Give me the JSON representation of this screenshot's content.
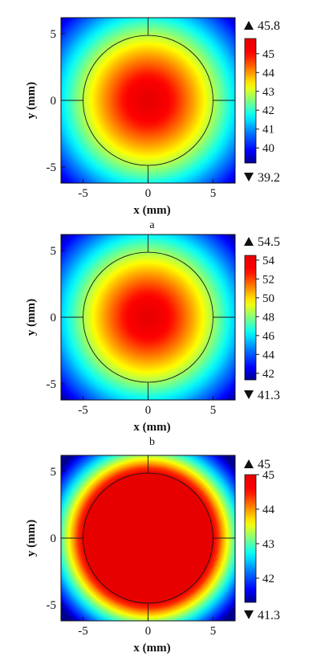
{
  "chart_data": [
    {
      "type": "heatmap",
      "panel_label": "a",
      "xlabel": "x (mm)",
      "ylabel": "y (mm)",
      "xlim": [
        -6.7,
        6.7
      ],
      "ylim": [
        -6.2,
        6.2
      ],
      "xticks": [
        -5,
        0,
        5
      ],
      "yticks": [
        -5,
        0,
        5
      ],
      "circle_radius": 5,
      "field": {
        "kind": "radial",
        "center_value": 45.8,
        "edge_value": 39.2,
        "falloff_radius": 9.5,
        "plateau_radius": 0
      },
      "colorbar": {
        "min": 39.2,
        "max": 45.8,
        "ticks": [
          40,
          41,
          42,
          43,
          44,
          45
        ],
        "max_label": "45.8",
        "min_label": "39.2"
      }
    },
    {
      "type": "heatmap",
      "panel_label": "b",
      "xlabel": "x (mm)",
      "ylabel": "y (mm)",
      "xlim": [
        -6.7,
        6.7
      ],
      "ylim": [
        -6.2,
        6.2
      ],
      "xticks": [
        -5,
        0,
        5
      ],
      "yticks": [
        -5,
        0,
        5
      ],
      "circle_radius": 5,
      "field": {
        "kind": "radial",
        "center_value": 54.5,
        "edge_value": 41.3,
        "falloff_radius": 9.2,
        "plateau_radius": 0
      },
      "colorbar": {
        "min": 41.3,
        "max": 54.5,
        "ticks": [
          42,
          44,
          46,
          48,
          50,
          52,
          54
        ],
        "max_label": "54.5",
        "min_label": "41.3"
      }
    },
    {
      "type": "heatmap",
      "panel_label": "",
      "xlabel": "x (mm)",
      "ylabel": "y (mm)",
      "xlim": [
        -6.7,
        6.7
      ],
      "ylim": [
        -6.2,
        6.2
      ],
      "xticks": [
        -5,
        0,
        5
      ],
      "yticks": [
        -5,
        0,
        5
      ],
      "circle_radius": 5,
      "field": {
        "kind": "plateau",
        "center_value": 45,
        "edge_value": 41.3,
        "falloff_radius": 8.6,
        "plateau_radius": 5
      },
      "colorbar": {
        "min": 41.3,
        "max": 45,
        "ticks": [
          42,
          43,
          44,
          45
        ],
        "max_label": "45",
        "min_label": "41.3"
      }
    }
  ]
}
